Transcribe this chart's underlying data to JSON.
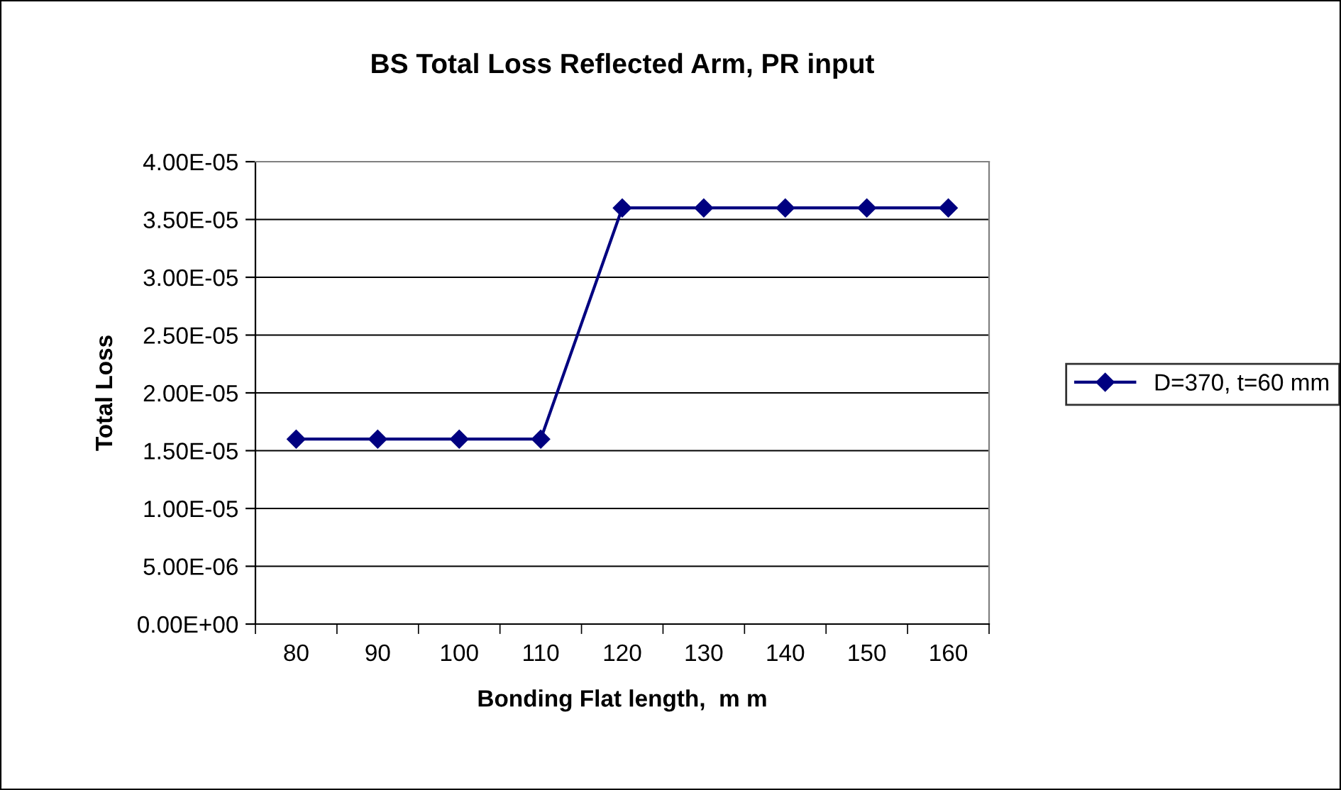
{
  "chart_data": {
    "type": "line",
    "title": "BS Total Loss Reflected Arm, PR input",
    "xlabel": "Bonding Flat length,  m m",
    "ylabel": "Total Loss",
    "categories": [
      "80",
      "90",
      "100",
      "110",
      "120",
      "130",
      "140",
      "150",
      "160"
    ],
    "series": [
      {
        "name": "D=370, t=60 mm",
        "color": "#000080",
        "values": [
          1.6e-05,
          1.6e-05,
          1.6e-05,
          1.6e-05,
          3.6e-05,
          3.6e-05,
          3.6e-05,
          3.6e-05,
          3.6e-05
        ]
      }
    ],
    "ylim": [
      0,
      4e-05
    ],
    "yticks": [
      {
        "value": 0,
        "label": "0.00E+00"
      },
      {
        "value": 5e-06,
        "label": "5.00E-06"
      },
      {
        "value": 1e-05,
        "label": "1.00E-05"
      },
      {
        "value": 1.5e-05,
        "label": "1.50E-05"
      },
      {
        "value": 2e-05,
        "label": "2.00E-05"
      },
      {
        "value": 2.5e-05,
        "label": "2.50E-05"
      },
      {
        "value": 3e-05,
        "label": "3.00E-05"
      },
      {
        "value": 3.5e-05,
        "label": "3.50E-05"
      },
      {
        "value": 4e-05,
        "label": "4.00E-05"
      }
    ],
    "grid": "y",
    "legend": "right",
    "marker": "diamond",
    "line_style": "solid"
  }
}
